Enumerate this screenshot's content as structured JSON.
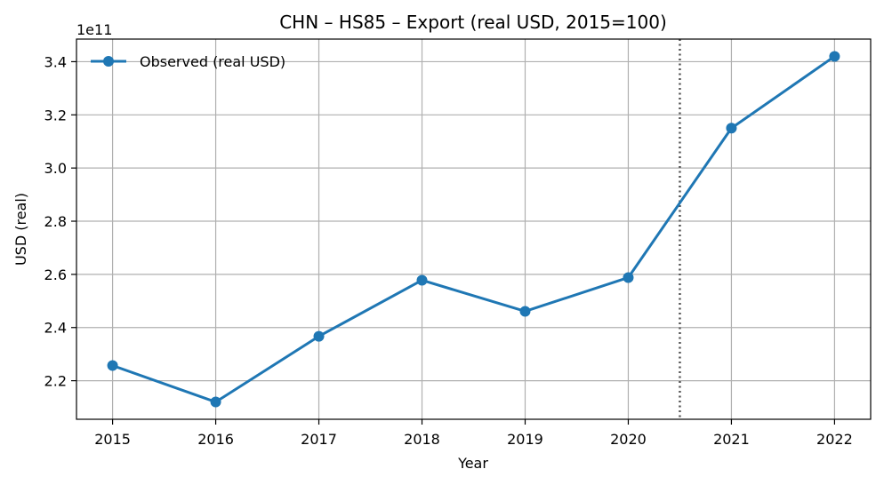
{
  "chart_data": {
    "type": "line",
    "title": "CHN – HS85 – Export (real USD, 2015=100)",
    "xlabel": "Year",
    "ylabel": "USD (real)",
    "y_offset_label": "1e11",
    "x": [
      2015,
      2016,
      2017,
      2018,
      2019,
      2020,
      2021,
      2022
    ],
    "series": [
      {
        "name": "Observed (real USD)",
        "color": "#1f77b4",
        "values": [
          2.257,
          2.12,
          2.367,
          2.578,
          2.461,
          2.588,
          3.15,
          3.42
        ]
      }
    ],
    "x_ticks": [
      2015,
      2016,
      2017,
      2018,
      2019,
      2020,
      2021,
      2022
    ],
    "y_ticks": [
      "2.2",
      "2.4",
      "2.6",
      "2.8",
      "3.0",
      "3.2",
      "3.4"
    ],
    "xlim": [
      2014.65,
      2022.35
    ],
    "ylim": [
      2.055,
      3.485
    ],
    "vertical_marker_x": 2020.5,
    "grid": true,
    "legend_placement": "top-left"
  }
}
